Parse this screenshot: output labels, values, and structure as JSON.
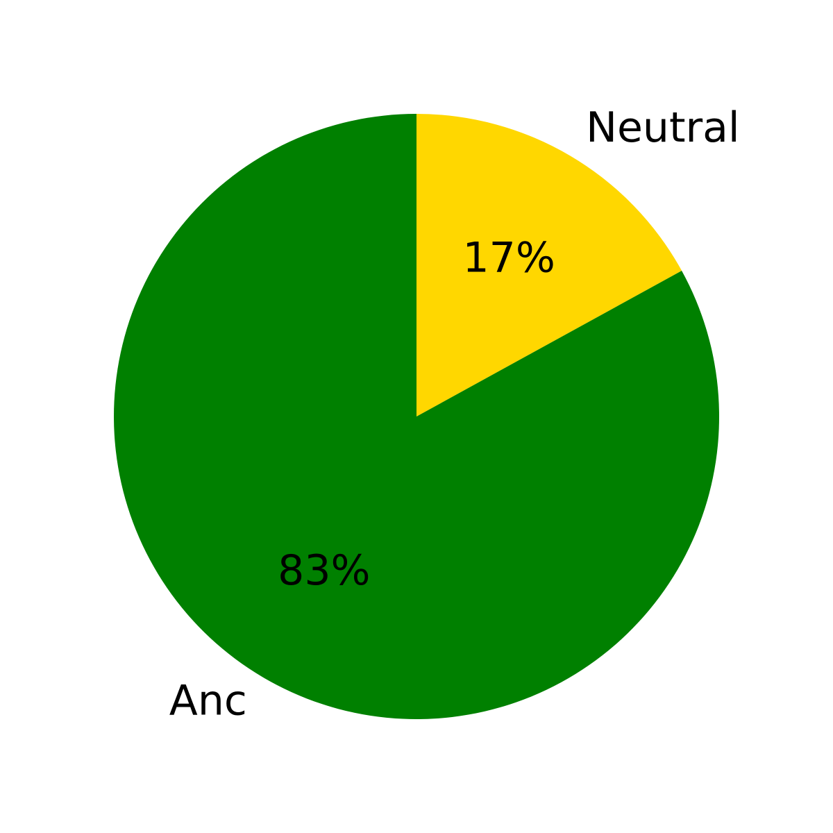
{
  "chart_data": {
    "type": "pie",
    "title": "",
    "start_angle_deg": 90,
    "direction": "clockwise",
    "slices": [
      {
        "label": "Neutral",
        "value": 17,
        "pct_label": "17%",
        "color": "#FFD700"
      },
      {
        "label": "Anc",
        "value": 83,
        "pct_label": "83%",
        "color": "#008000"
      }
    ]
  }
}
